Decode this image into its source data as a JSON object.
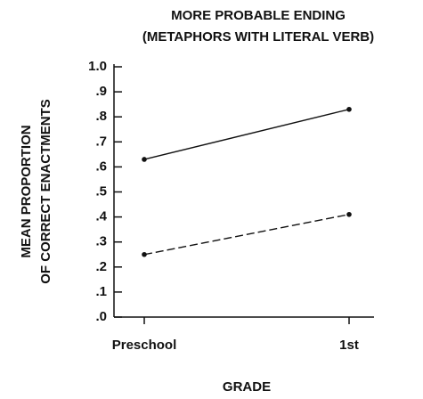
{
  "chart_data": {
    "type": "line",
    "title": [
      "MORE PROBABLE ENDING",
      "(METAPHORS WITH LITERAL VERB)"
    ],
    "y_label": [
      "MEAN PROPORTION",
      "OF CORRECT ENACTMENTS"
    ],
    "x_label": "GRADE",
    "categories": [
      "Preschool",
      "1st"
    ],
    "series": [
      {
        "color": "#111111",
        "style": "solid",
        "values": [
          0.63,
          0.83
        ]
      },
      {
        "color": "#111111",
        "style": "dashed",
        "values": [
          0.25,
          0.41
        ]
      }
    ],
    "ylim": [
      0,
      1
    ],
    "yticks": [
      {
        "value": 0,
        "label": ".0"
      },
      {
        "value": 0.1,
        "label": ".1"
      },
      {
        "value": 0.2,
        "label": ".2"
      },
      {
        "value": 0.3,
        "label": ".3"
      },
      {
        "value": 0.4,
        "label": ".4"
      },
      {
        "value": 0.5,
        "label": ".5"
      },
      {
        "value": 0.6,
        "label": ".6"
      },
      {
        "value": 0.7,
        "label": ".7"
      },
      {
        "value": 0.8,
        "label": ".8"
      },
      {
        "value": 0.9,
        "label": ".9"
      },
      {
        "value": 1,
        "label": "1.0"
      }
    ],
    "grid": false
  }
}
